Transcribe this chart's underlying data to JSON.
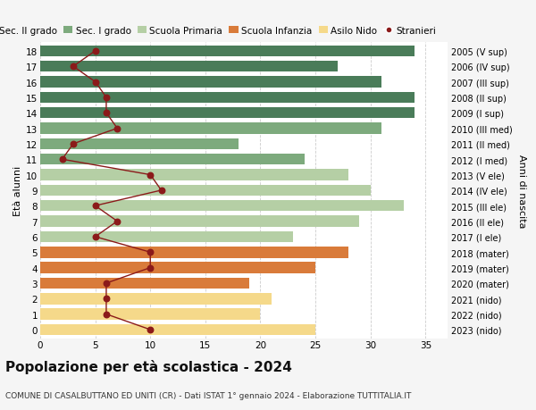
{
  "ages": [
    18,
    17,
    16,
    15,
    14,
    13,
    12,
    11,
    10,
    9,
    8,
    7,
    6,
    5,
    4,
    3,
    2,
    1,
    0
  ],
  "years": [
    "2005 (V sup)",
    "2006 (IV sup)",
    "2007 (III sup)",
    "2008 (II sup)",
    "2009 (I sup)",
    "2010 (III med)",
    "2011 (II med)",
    "2012 (I med)",
    "2013 (V ele)",
    "2014 (IV ele)",
    "2015 (III ele)",
    "2016 (II ele)",
    "2017 (I ele)",
    "2018 (mater)",
    "2019 (mater)",
    "2020 (mater)",
    "2021 (nido)",
    "2022 (nido)",
    "2023 (nido)"
  ],
  "bar_values": [
    34,
    27,
    31,
    34,
    34,
    31,
    18,
    24,
    28,
    30,
    33,
    29,
    23,
    28,
    25,
    19,
    21,
    20,
    25
  ],
  "bar_colors": [
    "#4a7c59",
    "#4a7c59",
    "#4a7c59",
    "#4a7c59",
    "#4a7c59",
    "#7daa7d",
    "#7daa7d",
    "#7daa7d",
    "#b5cfa5",
    "#b5cfa5",
    "#b5cfa5",
    "#b5cfa5",
    "#b5cfa5",
    "#d97b3a",
    "#d97b3a",
    "#d97b3a",
    "#f5d98a",
    "#f5d98a",
    "#f5d98a"
  ],
  "stranieri_values": [
    5,
    3,
    5,
    6,
    6,
    7,
    3,
    2,
    10,
    11,
    5,
    7,
    5,
    10,
    10,
    6,
    6,
    6,
    10
  ],
  "legend_labels": [
    "Sec. II grado",
    "Sec. I grado",
    "Scuola Primaria",
    "Scuola Infanzia",
    "Asilo Nido",
    "Stranieri"
  ],
  "legend_colors": [
    "#4a7c59",
    "#7daa7d",
    "#b5cfa5",
    "#d97b3a",
    "#f5d98a",
    "#8b1a1a"
  ],
  "title": "Popolazione per età scolastica - 2024",
  "subtitle": "COMUNE DI CASALBUTTANO ED UNITI (CR) - Dati ISTAT 1° gennaio 2024 - Elaborazione TUTTITALIA.IT",
  "ylabel_left": "Età alunni",
  "ylabel_right": "Anni di nascita",
  "xlim": [
    0,
    37
  ],
  "ylim": [
    -0.55,
    18.55
  ],
  "background_color": "#f5f5f5",
  "plot_bg_color": "#ffffff",
  "grid_color": "#cccccc",
  "stranieri_line_color": "#8b1a1a",
  "stranieri_dot_color": "#8b1a1a",
  "bar_height": 0.72,
  "title_fontsize": 11,
  "subtitle_fontsize": 6.5,
  "legend_fontsize": 7.5,
  "tick_fontsize": 7.5,
  "ylabel_fontsize": 8
}
